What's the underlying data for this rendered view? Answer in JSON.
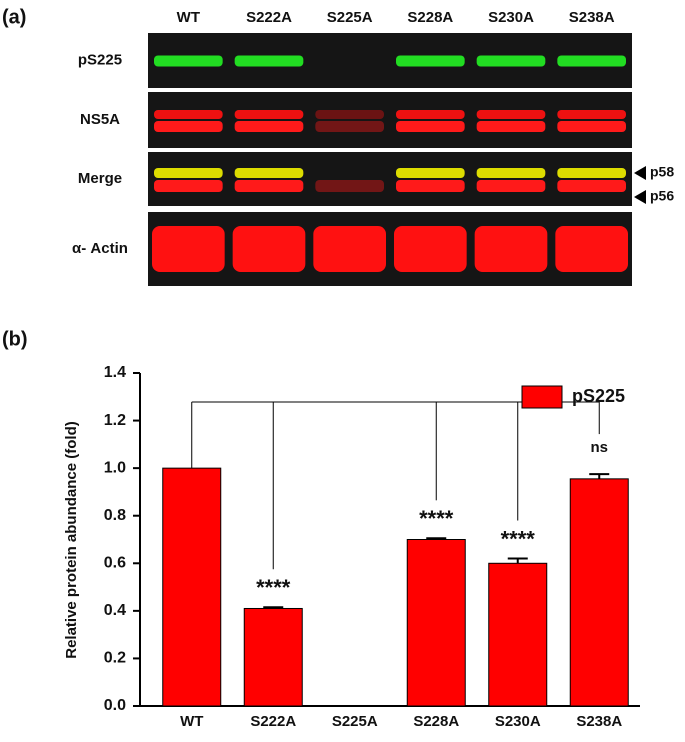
{
  "panel_a": {
    "label": "(a)",
    "lanes": [
      "WT",
      "S222A",
      "S225A",
      "S228A",
      "S230A",
      "S238A"
    ],
    "rows": [
      "pS225",
      "NS5A",
      "Merge",
      "α- Actin"
    ],
    "markers": [
      "p58",
      "p56"
    ]
  },
  "chart_data": {
    "type": "bar",
    "panel_label": "(b)",
    "y_label": "Relative protein abundance (fold)",
    "categories": [
      "WT",
      "S222A",
      "S225A",
      "S228A",
      "S230A",
      "S238A"
    ],
    "series": [
      {
        "name": "pS225",
        "color": "#ff0000",
        "values": [
          1.0,
          0.41,
          0,
          0.7,
          0.6,
          0.955
        ],
        "errors": [
          0,
          0.005,
          0,
          0.005,
          0.02,
          0.02
        ]
      }
    ],
    "annotations": [
      null,
      "****",
      null,
      "****",
      "****",
      "ns"
    ],
    "ylim": [
      0,
      1.4
    ],
    "yticks": [
      {
        "value": 0,
        "label": "0.0"
      },
      0.2,
      0.4,
      0.6,
      0.8,
      {
        "value": 1,
        "label": "1.0"
      },
      1.2,
      1.4
    ],
    "legend": "upper right"
  }
}
